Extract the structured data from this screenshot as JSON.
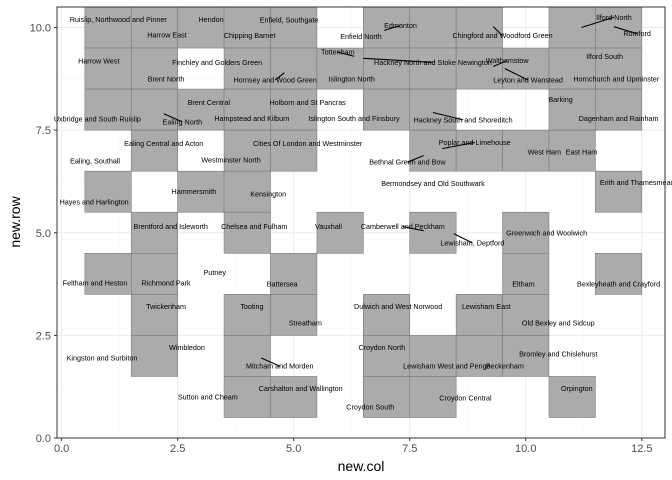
{
  "chart_data": {
    "type": "tile",
    "xlabel": "new.col",
    "ylabel": "new.row",
    "xlim": [
      -0.1,
      13.0
    ],
    "ylim": [
      0.0,
      10.5
    ],
    "x_ticks": [
      0.0,
      2.5,
      5.0,
      7.5,
      10.0,
      12.5
    ],
    "y_ticks": [
      0.0,
      2.5,
      5.0,
      7.5,
      10.0
    ],
    "x_tick_labels": [
      "0.0",
      "2.5",
      "5.0",
      "7.5",
      "10.0",
      "12.5"
    ],
    "y_tick_labels": [
      "0.0",
      "2.5",
      "5.0",
      "7.5",
      "10.0"
    ],
    "grid": true,
    "tile_color": "#ababab",
    "tiles": [
      {
        "col": 1,
        "row": 10
      },
      {
        "col": 2,
        "row": 10
      },
      {
        "col": 3,
        "row": 10
      },
      {
        "col": 4,
        "row": 10
      },
      {
        "col": 5,
        "row": 10
      },
      {
        "col": 7,
        "row": 10
      },
      {
        "col": 8,
        "row": 10
      },
      {
        "col": 9,
        "row": 10
      },
      {
        "col": 11,
        "row": 10
      },
      {
        "col": 12,
        "row": 10
      },
      {
        "col": 1,
        "row": 9
      },
      {
        "col": 2,
        "row": 9
      },
      {
        "col": 4,
        "row": 9
      },
      {
        "col": 5,
        "row": 9
      },
      {
        "col": 6,
        "row": 9
      },
      {
        "col": 7,
        "row": 9
      },
      {
        "col": 8,
        "row": 9
      },
      {
        "col": 9,
        "row": 9
      },
      {
        "col": 10,
        "row": 9
      },
      {
        "col": 11,
        "row": 9
      },
      {
        "col": 12,
        "row": 9
      },
      {
        "col": 1,
        "row": 8
      },
      {
        "col": 2,
        "row": 8
      },
      {
        "col": 3,
        "row": 8
      },
      {
        "col": 4,
        "row": 8
      },
      {
        "col": 5,
        "row": 8
      },
      {
        "col": 7,
        "row": 8
      },
      {
        "col": 8,
        "row": 8
      },
      {
        "col": 11,
        "row": 8
      },
      {
        "col": 12,
        "row": 8
      },
      {
        "col": 2,
        "row": 7
      },
      {
        "col": 4,
        "row": 7
      },
      {
        "col": 5,
        "row": 7
      },
      {
        "col": 8,
        "row": 7
      },
      {
        "col": 9,
        "row": 7
      },
      {
        "col": 10,
        "row": 7
      },
      {
        "col": 11,
        "row": 7
      },
      {
        "col": 1,
        "row": 6
      },
      {
        "col": 3,
        "row": 6
      },
      {
        "col": 4,
        "row": 6
      },
      {
        "col": 12,
        "row": 6
      },
      {
        "col": 2,
        "row": 5
      },
      {
        "col": 4,
        "row": 5
      },
      {
        "col": 6,
        "row": 5
      },
      {
        "col": 8,
        "row": 5
      },
      {
        "col": 10,
        "row": 5
      },
      {
        "col": 1,
        "row": 4
      },
      {
        "col": 2,
        "row": 4
      },
      {
        "col": 5,
        "row": 4
      },
      {
        "col": 10,
        "row": 4
      },
      {
        "col": 12,
        "row": 4
      },
      {
        "col": 2,
        "row": 3
      },
      {
        "col": 4,
        "row": 3
      },
      {
        "col": 5,
        "row": 3
      },
      {
        "col": 7,
        "row": 3
      },
      {
        "col": 9,
        "row": 3
      },
      {
        "col": 10,
        "row": 3
      },
      {
        "col": 2,
        "row": 2
      },
      {
        "col": 4,
        "row": 2
      },
      {
        "col": 7,
        "row": 2
      },
      {
        "col": 8,
        "row": 2
      },
      {
        "col": 9,
        "row": 2
      },
      {
        "col": 10,
        "row": 2
      },
      {
        "col": 4,
        "row": 1
      },
      {
        "col": 5,
        "row": 1
      },
      {
        "col": 7,
        "row": 1
      },
      {
        "col": 8,
        "row": 1
      },
      {
        "col": 11,
        "row": 1
      }
    ],
    "labels": [
      {
        "text": "Ruislip, Northwood and Pinner",
        "x": 1.22,
        "y": 10.2
      },
      {
        "text": "Hendon",
        "x": 3.22,
        "y": 10.2
      },
      {
        "text": "Enfield, Southgate",
        "x": 4.9,
        "y": 10.18
      },
      {
        "text": "Harrow East",
        "x": 2.27,
        "y": 9.82
      },
      {
        "text": "Chipping Barnet",
        "x": 4.05,
        "y": 9.8
      },
      {
        "text": "Edmonton",
        "x": 7.3,
        "y": 10.05,
        "lx": 6.95,
        "ly": 9.93
      },
      {
        "text": "Enfield North",
        "x": 6.45,
        "y": 9.78
      },
      {
        "text": "Chingford and Woodford Green",
        "x": 9.5,
        "y": 9.8,
        "lx": 9.3,
        "ly": 10.02
      },
      {
        "text": "Ilford North",
        "x": 11.9,
        "y": 10.25,
        "lx": 11.2,
        "ly": 10.0
      },
      {
        "text": "Romford",
        "x": 12.4,
        "y": 9.85,
        "lx": 11.9,
        "ly": 10.02
      },
      {
        "text": "Harrow West",
        "x": 0.8,
        "y": 9.18
      },
      {
        "text": "Finchley and Golders Green",
        "x": 3.35,
        "y": 9.15
      },
      {
        "text": "Tottenham",
        "x": 5.95,
        "y": 9.4,
        "lx": 6.3,
        "ly": 9.3
      },
      {
        "text": "Hackney North and Stoke Newington",
        "x": 8.0,
        "y": 9.15,
        "lx": 6.5,
        "ly": 9.25
      },
      {
        "text": "Walthamstow",
        "x": 9.6,
        "y": 9.2,
        "lx": 9.3,
        "ly": 9.05
      },
      {
        "text": "Ilford South",
        "x": 11.7,
        "y": 9.3
      },
      {
        "text": "Brent North",
        "x": 2.25,
        "y": 8.75
      },
      {
        "text": "Hornsey and Wood Green",
        "x": 4.6,
        "y": 8.72,
        "lx": 4.8,
        "ly": 8.9
      },
      {
        "text": "Islington North",
        "x": 6.25,
        "y": 8.75
      },
      {
        "text": "Leyton and Wanstead",
        "x": 10.05,
        "y": 8.72,
        "lx": 9.55,
        "ly": 9.0
      },
      {
        "text": "Hornchurch and Upminster",
        "x": 11.95,
        "y": 8.75
      },
      {
        "text": "Brent Central",
        "x": 3.17,
        "y": 8.17
      },
      {
        "text": "Holborn and St Pancras",
        "x": 5.3,
        "y": 8.17
      },
      {
        "text": "Barking",
        "x": 10.75,
        "y": 8.25
      },
      {
        "text": "Uxbridge and South Ruislip",
        "x": 0.77,
        "y": 7.77
      },
      {
        "text": "Ealing North",
        "x": 2.6,
        "y": 7.7,
        "lx": 2.2,
        "ly": 7.9
      },
      {
        "text": "Hampstead and Kilburn",
        "x": 4.1,
        "y": 7.78
      },
      {
        "text": "Islington South and Finsbury",
        "x": 6.3,
        "y": 7.78
      },
      {
        "text": "Hackney South and Shoreditch",
        "x": 8.65,
        "y": 7.75,
        "lx": 8.0,
        "ly": 7.93
      },
      {
        "text": "Dagenham and Rainham",
        "x": 12.0,
        "y": 7.78
      },
      {
        "text": "Ealing Central and Acton",
        "x": 2.2,
        "y": 7.17
      },
      {
        "text": "Cities Of London and Westminster",
        "x": 5.3,
        "y": 7.17
      },
      {
        "text": "Poplar and Limehouse",
        "x": 8.9,
        "y": 7.2,
        "lx": 8.2,
        "ly": 7.05
      },
      {
        "text": "West Ham",
        "x": 10.4,
        "y": 6.97
      },
      {
        "text": "East Ham",
        "x": 11.2,
        "y": 6.97
      },
      {
        "text": "Ealing, Southall",
        "x": 0.72,
        "y": 6.75
      },
      {
        "text": "Westminster North",
        "x": 3.65,
        "y": 6.77
      },
      {
        "text": "Bethnal Green and Bow",
        "x": 7.45,
        "y": 6.72,
        "lx": 7.8,
        "ly": 6.88
      },
      {
        "text": "Bermondsey and Old Southwark",
        "x": 8.0,
        "y": 6.2
      },
      {
        "text": "Erith and Thamesmead",
        "x": 12.4,
        "y": 6.23
      },
      {
        "text": "Hammersmith",
        "x": 2.85,
        "y": 6.0
      },
      {
        "text": "Kensington",
        "x": 4.45,
        "y": 5.95
      },
      {
        "text": "Hayes and Harlington",
        "x": 0.7,
        "y": 5.75
      },
      {
        "text": "Brentford and Isleworth",
        "x": 2.35,
        "y": 5.15
      },
      {
        "text": "Chelsea and Fulham",
        "x": 4.15,
        "y": 5.15
      },
      {
        "text": "Vauxhall",
        "x": 5.75,
        "y": 5.15
      },
      {
        "text": "Camberwell and Peckham",
        "x": 7.35,
        "y": 5.15,
        "lx": 7.8,
        "ly": 5.05
      },
      {
        "text": "Greenwich and Woolwich",
        "x": 10.45,
        "y": 5.0
      },
      {
        "text": "Lewisham, Deptford",
        "x": 8.85,
        "y": 4.75,
        "lx": 8.45,
        "ly": 4.98
      },
      {
        "text": "Putney",
        "x": 3.3,
        "y": 4.03
      },
      {
        "text": "Feltham and Heston",
        "x": 0.72,
        "y": 3.78
      },
      {
        "text": "Richmond Park",
        "x": 2.25,
        "y": 3.78
      },
      {
        "text": "Battersea",
        "x": 4.75,
        "y": 3.75
      },
      {
        "text": "Eltham",
        "x": 9.95,
        "y": 3.75
      },
      {
        "text": "Bexleyheath and Crayford",
        "x": 12.0,
        "y": 3.75
      },
      {
        "text": "Twickenham",
        "x": 2.25,
        "y": 3.2
      },
      {
        "text": "Tooting",
        "x": 4.1,
        "y": 3.2
      },
      {
        "text": "Dulwich and West Norwood",
        "x": 7.25,
        "y": 3.2
      },
      {
        "text": "Lewisham East",
        "x": 9.15,
        "y": 3.2
      },
      {
        "text": "Streatham",
        "x": 5.25,
        "y": 2.8
      },
      {
        "text": "Old Bexley and Sidcup",
        "x": 10.7,
        "y": 2.8
      },
      {
        "text": "Wimbledon",
        "x": 2.7,
        "y": 2.2
      },
      {
        "text": "Croydon North",
        "x": 6.9,
        "y": 2.2
      },
      {
        "text": "Bromley and Chislehurst",
        "x": 10.7,
        "y": 2.05
      },
      {
        "text": "Kingston and Surbiton",
        "x": 0.87,
        "y": 1.95
      },
      {
        "text": "Mitcham and Morden",
        "x": 4.7,
        "y": 1.75,
        "lx": 4.3,
        "ly": 1.95
      },
      {
        "text": "Lewisham West and Penge",
        "x": 8.3,
        "y": 1.75
      },
      {
        "text": "Beckenham",
        "x": 9.55,
        "y": 1.75
      },
      {
        "text": "Carshalton and Wallington",
        "x": 5.15,
        "y": 1.2
      },
      {
        "text": "Orpington",
        "x": 11.1,
        "y": 1.2
      },
      {
        "text": "Sutton and Cheam",
        "x": 3.15,
        "y": 1.0
      },
      {
        "text": "Croydon Central",
        "x": 8.7,
        "y": 0.97
      },
      {
        "text": "Croydon South",
        "x": 6.65,
        "y": 0.75
      }
    ]
  }
}
